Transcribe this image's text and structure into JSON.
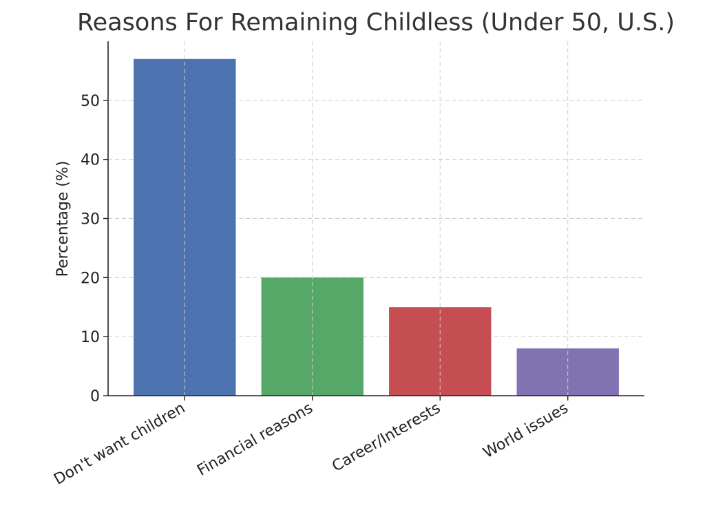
{
  "chart_data": {
    "type": "bar",
    "title": "Reasons For Remaining Childless (Under 50, U.S.)",
    "xlabel": "",
    "ylabel": "Percentage (%)",
    "categories": [
      "Don't want children",
      "Financial reasons",
      "Career/Interests",
      "World issues"
    ],
    "values": [
      57,
      20,
      15,
      8
    ],
    "colors": [
      "#4c72b0",
      "#55a868",
      "#c44e52",
      "#8172b2"
    ],
    "ylim": [
      0,
      60
    ],
    "yticks": [
      0,
      10,
      20,
      30,
      40,
      50
    ],
    "grid": true
  }
}
